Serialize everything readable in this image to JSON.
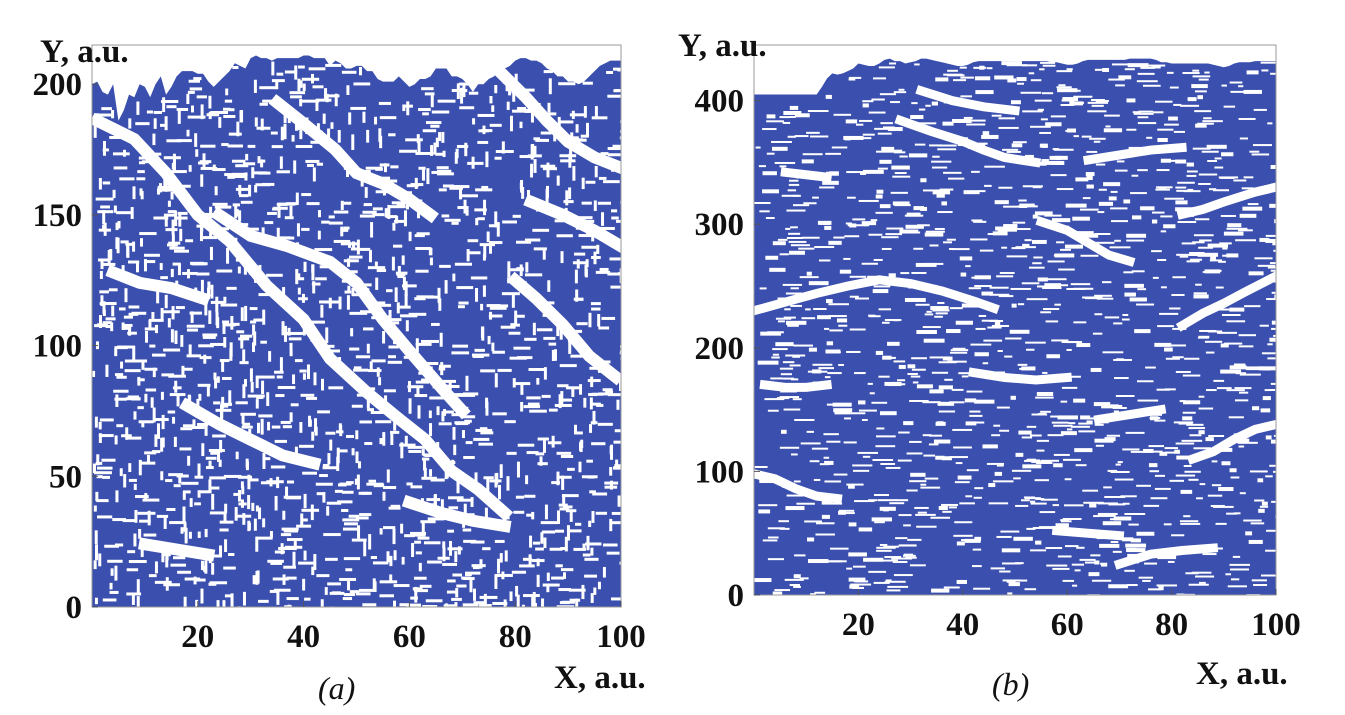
{
  "figure": {
    "colors": {
      "fill": "#3a4fae",
      "background": "#ffffff",
      "text": "#111111"
    }
  },
  "chart_data": [
    {
      "type": "heatmap",
      "caption": "(a)",
      "xlabel": "X, a.u.",
      "ylabel": "Y, a.u.",
      "xlim": [
        0,
        100
      ],
      "ylim": [
        0,
        215
      ],
      "xticks": [
        20,
        40,
        60,
        80,
        100
      ],
      "yticks": [
        0,
        50,
        100,
        150,
        200
      ],
      "fill_color": "#3a4fae",
      "front_height": [
        200,
        201,
        197,
        196,
        200,
        186,
        190,
        196,
        195,
        200,
        199,
        195,
        200,
        203,
        196,
        199,
        203,
        205,
        205,
        205,
        204,
        204,
        201,
        199,
        201,
        203,
        205,
        208,
        207,
        206,
        210,
        211,
        210,
        210,
        209,
        210,
        210,
        210,
        210,
        210,
        211,
        211,
        210,
        210,
        210,
        207,
        209,
        208,
        206,
        206,
        207,
        207,
        205,
        205,
        202,
        201,
        201,
        201,
        203,
        201,
        199,
        200,
        202,
        202,
        203,
        206,
        206,
        206,
        203,
        203,
        202,
        200,
        197,
        200,
        200,
        202,
        203,
        205,
        206,
        207,
        209,
        210,
        210,
        209,
        209,
        208,
        206,
        205,
        203,
        203,
        201,
        201,
        200,
        201,
        203,
        205,
        207,
        208,
        209,
        209,
        209
      ],
      "gaps": [
        [
          [
            1,
            186
          ],
          [
            8,
            179
          ],
          [
            14,
            166
          ],
          [
            20,
            150
          ],
          [
            26,
            140
          ],
          [
            33,
            123
          ],
          [
            40,
            110
          ],
          [
            45,
            95
          ],
          [
            52,
            82
          ],
          [
            58,
            72
          ],
          [
            63,
            64
          ],
          [
            68,
            52
          ],
          [
            73,
            45
          ],
          [
            78,
            36
          ]
        ],
        [
          [
            24,
            150
          ],
          [
            30,
            142
          ],
          [
            37,
            138
          ],
          [
            45,
            132
          ],
          [
            50,
            124
          ],
          [
            55,
            110
          ],
          [
            60,
            98
          ],
          [
            66,
            84
          ],
          [
            70,
            75
          ]
        ],
        [
          [
            35,
            193
          ],
          [
            40,
            185
          ],
          [
            46,
            175
          ],
          [
            50,
            166
          ],
          [
            55,
            162
          ],
          [
            60,
            156
          ],
          [
            64,
            150
          ]
        ],
        [
          [
            77,
            205
          ],
          [
            82,
            195
          ],
          [
            86,
            186
          ],
          [
            90,
            178
          ],
          [
            95,
            172
          ],
          [
            100,
            168
          ]
        ],
        [
          [
            80,
            125
          ],
          [
            84,
            118
          ],
          [
            89,
            108
          ],
          [
            94,
            96
          ],
          [
            99,
            88
          ]
        ],
        [
          [
            18,
            77
          ],
          [
            24,
            70
          ],
          [
            30,
            64
          ],
          [
            36,
            58
          ],
          [
            42,
            55
          ]
        ],
        [
          [
            60,
            40
          ],
          [
            66,
            36
          ],
          [
            72,
            33
          ],
          [
            78,
            31
          ]
        ],
        [
          [
            10,
            24
          ],
          [
            16,
            22
          ],
          [
            22,
            20
          ]
        ],
        [
          [
            4,
            128
          ],
          [
            9,
            124
          ],
          [
            15,
            122
          ],
          [
            21,
            118
          ]
        ],
        [
          [
            83,
            155
          ],
          [
            89,
            150
          ],
          [
            95,
            144
          ],
          [
            100,
            138
          ]
        ]
      ]
    },
    {
      "type": "heatmap",
      "caption": "(b)",
      "xlabel": "X, a.u.",
      "ylabel": "Y, a.u.",
      "xlim": [
        0,
        100
      ],
      "ylim": [
        0,
        445
      ],
      "xticks": [
        20,
        40,
        60,
        80,
        100
      ],
      "yticks": [
        0,
        100,
        200,
        300,
        400
      ],
      "fill_color": "#3a4fae",
      "front_height": [
        405,
        405,
        405,
        405,
        405,
        405,
        405,
        405,
        405,
        405,
        405,
        405,
        405,
        411,
        418,
        422,
        421,
        422,
        424,
        426,
        430,
        429,
        428,
        428,
        430,
        433,
        434,
        432,
        432,
        430,
        431,
        432,
        434,
        434,
        433,
        432,
        431,
        430,
        429,
        428,
        428,
        429,
        431,
        432,
        432,
        432,
        432,
        432,
        432,
        432,
        432,
        432,
        432,
        432,
        432,
        432,
        432,
        431,
        431,
        430,
        429,
        429,
        430,
        432,
        433,
        433,
        433,
        433,
        433,
        433,
        433,
        433,
        434,
        434,
        434,
        434,
        434,
        433,
        431,
        431,
        430,
        430,
        430,
        430,
        430,
        430,
        430,
        430,
        429,
        428,
        427,
        428,
        430,
        431,
        431,
        431,
        432,
        432,
        432,
        432,
        432
      ],
      "gaps": [
        [
          [
            0,
            230
          ],
          [
            6,
            237
          ],
          [
            12,
            244
          ],
          [
            18,
            250
          ],
          [
            24,
            255
          ],
          [
            30,
            252
          ],
          [
            36,
            246
          ],
          [
            42,
            238
          ],
          [
            46,
            232
          ]
        ],
        [
          [
            28,
            384
          ],
          [
            34,
            375
          ],
          [
            40,
            367
          ],
          [
            44,
            360
          ],
          [
            48,
            354
          ],
          [
            54,
            350
          ]
        ],
        [
          [
            55,
            302
          ],
          [
            60,
            295
          ],
          [
            64,
            285
          ],
          [
            68,
            275
          ],
          [
            72,
            270
          ]
        ],
        [
          [
            82,
            218
          ],
          [
            86,
            228
          ],
          [
            90,
            236
          ],
          [
            94,
            245
          ],
          [
            100,
            258
          ]
        ],
        [
          [
            0,
            98
          ],
          [
            4,
            94
          ],
          [
            8,
            86
          ],
          [
            12,
            80
          ],
          [
            16,
            78
          ]
        ],
        [
          [
            32,
            408
          ],
          [
            38,
            400
          ],
          [
            44,
            395
          ],
          [
            50,
            392
          ]
        ],
        [
          [
            82,
            308
          ],
          [
            86,
            312
          ],
          [
            90,
            318
          ],
          [
            96,
            326
          ],
          [
            100,
            330
          ]
        ],
        [
          [
            2,
            170
          ],
          [
            6,
            168
          ],
          [
            10,
            168
          ],
          [
            14,
            170
          ]
        ],
        [
          [
            58,
            52
          ],
          [
            64,
            50
          ],
          [
            70,
            48
          ]
        ],
        [
          [
            70,
            25
          ],
          [
            76,
            33
          ],
          [
            82,
            36
          ],
          [
            88,
            38
          ]
        ],
        [
          [
            84,
            110
          ],
          [
            88,
            116
          ],
          [
            92,
            126
          ],
          [
            96,
            134
          ],
          [
            100,
            138
          ]
        ],
        [
          [
            42,
            180
          ],
          [
            48,
            176
          ],
          [
            54,
            174
          ],
          [
            60,
            176
          ]
        ],
        [
          [
            64,
            352
          ],
          [
            70,
            356
          ],
          [
            76,
            360
          ],
          [
            82,
            362
          ]
        ],
        [
          [
            6,
            342
          ],
          [
            10,
            340
          ],
          [
            14,
            338
          ]
        ],
        [
          [
            66,
            142
          ],
          [
            72,
            146
          ],
          [
            78,
            150
          ]
        ]
      ]
    }
  ]
}
